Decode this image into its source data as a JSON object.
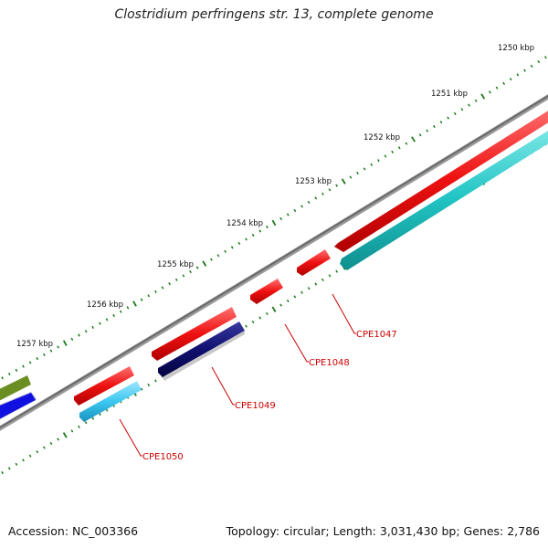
{
  "title": "Clostridium perfringens str. 13, complete genome",
  "footer": {
    "accession": "Accession: NC_003366",
    "summary": "Topology: circular; Length: 3,031,430 bp; Genes: 2,786"
  },
  "ruler": {
    "labels": [
      "1250 kbp",
      "1251 kbp",
      "1252 kbp",
      "1253 kbp",
      "1254 kbp",
      "1255 kbp",
      "1256 kbp",
      "1257 kbp"
    ]
  },
  "genes": [
    {
      "label": "CPE1047"
    },
    {
      "label": "CPE1048"
    },
    {
      "label": "CPE1049"
    },
    {
      "label": "CPE1050"
    }
  ],
  "colors": {
    "backbone": "#7a7a7a",
    "cds_forward": "#ee1111",
    "cds_teal": "#22c4c4",
    "cds_navy": "#101070",
    "cds_light": "#3cc8f0",
    "cds_olive": "#6b8e23",
    "cds_blue": "#1010e0",
    "tick": "#1a7a1a",
    "label": "#cc0000"
  }
}
